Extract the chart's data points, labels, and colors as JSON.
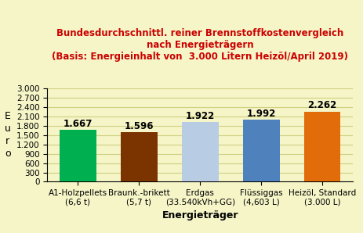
{
  "title_line1": "Bundesdurchschnittl. reiner Brennstoffkostenvergleich",
  "title_line2": "nach Energieträgern",
  "title_line3": "(Basis: Energieinhalt von  3.000 Litern Heizöl/April 2019)",
  "categories": [
    "A1-Holzpellets\n(6,6 t)",
    "Braunk.-brikett\n(5,7 t)",
    "Erdgas\n(33.540kVh+GG)",
    "Flüssiggas\n(4,603 L)",
    "Heizöl, Standard\n(3.000 L)"
  ],
  "values": [
    1667,
    1596,
    1922,
    1992,
    2262
  ],
  "value_labels": [
    "1.667",
    "1.596",
    "1.922",
    "1.992",
    "2.262"
  ],
  "bar_colors": [
    "#00b050",
    "#7b3300",
    "#b8cce4",
    "#4f81bd",
    "#e26b0a"
  ],
  "xlabel": "Energieträger",
  "ylim": [
    0,
    3000
  ],
  "yticks": [
    0,
    300,
    600,
    900,
    1200,
    1500,
    1800,
    2100,
    2400,
    2700,
    3000
  ],
  "ytick_labels": [
    "0",
    "300",
    "600",
    "900",
    "1.200",
    "1.500",
    "1.800",
    "2.100",
    "2.400",
    "2.700",
    "3.000"
  ],
  "title_color": "#cc0000",
  "background_color": "#f5f5c8",
  "grid_color": "#d0d080",
  "value_fontsize": 8.5,
  "axis_label_fontsize": 9,
  "tick_fontsize": 7.5,
  "title_fontsize": 8.5
}
